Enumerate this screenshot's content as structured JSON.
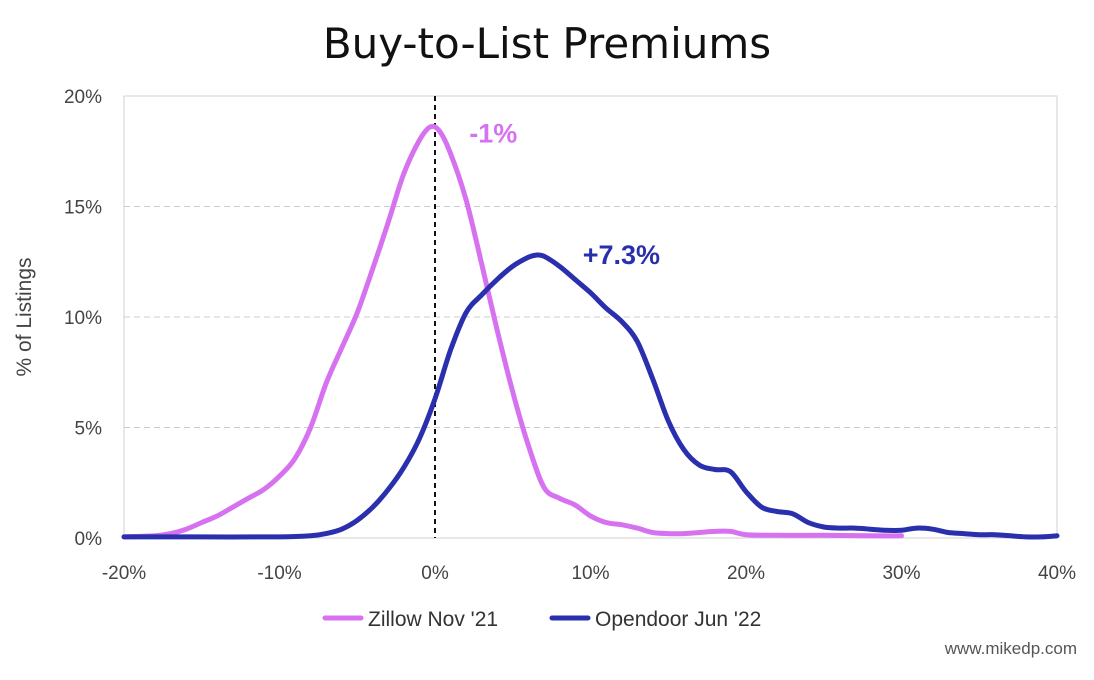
{
  "chart_data": {
    "type": "line",
    "title": "Buy-to-List Premiums",
    "xlabel": "",
    "ylabel": "% of Listings",
    "xlim": [
      -20,
      40
    ],
    "ylim": [
      0,
      20
    ],
    "x_ticks": [
      -20,
      -10,
      0,
      10,
      20,
      30,
      40
    ],
    "x_tick_labels": [
      "-20%",
      "-10%",
      "0%",
      "10%",
      "20%",
      "30%",
      "40%"
    ],
    "y_ticks": [
      0,
      5,
      10,
      15,
      20
    ],
    "y_tick_labels": [
      "0%",
      "5%",
      "10%",
      "15%",
      "20%"
    ],
    "grid": "horizontal-dashed",
    "reference_line_x": 0,
    "legend_position": "bottom",
    "series": [
      {
        "name": "Zillow Nov '21",
        "color": "#d672f0",
        "x": [
          -20,
          -18,
          -17,
          -16,
          -15,
          -14,
          -13,
          -12,
          -11,
          -10,
          -9,
          -8,
          -7,
          -6,
          -5,
          -4,
          -3,
          -2,
          -1,
          -0.3,
          0.3,
          1,
          2,
          3,
          4,
          5,
          6,
          7,
          8,
          9,
          10,
          11,
          12,
          13,
          14,
          15,
          16,
          17,
          18,
          19,
          20,
          22,
          25,
          28,
          30
        ],
        "y": [
          0.05,
          0.1,
          0.2,
          0.4,
          0.7,
          1.0,
          1.4,
          1.8,
          2.2,
          2.8,
          3.6,
          5.0,
          7.0,
          8.6,
          10.2,
          12.2,
          14.3,
          16.5,
          18.0,
          18.6,
          18.4,
          17.4,
          15.3,
          12.4,
          9.4,
          6.6,
          4.2,
          2.3,
          1.8,
          1.5,
          1.0,
          0.7,
          0.6,
          0.45,
          0.25,
          0.2,
          0.2,
          0.25,
          0.3,
          0.3,
          0.15,
          0.12,
          0.12,
          0.1,
          0.1
        ]
      },
      {
        "name": "Opendoor Jun '22",
        "color": "#2a2fad",
        "x": [
          -20,
          -15,
          -10,
          -8,
          -7,
          -6,
          -5,
          -4,
          -3,
          -2,
          -1,
          0,
          1,
          2,
          3,
          4,
          5,
          6,
          6.5,
          7,
          8,
          9,
          10,
          11,
          12,
          13,
          14,
          15,
          16,
          17,
          18,
          19,
          20,
          21,
          22,
          23,
          24,
          25,
          26,
          27,
          28,
          29,
          30,
          31,
          32,
          33,
          34,
          35,
          36,
          37,
          38,
          39,
          40
        ],
        "y": [
          0.05,
          0.05,
          0.05,
          0.1,
          0.2,
          0.4,
          0.8,
          1.4,
          2.2,
          3.2,
          4.5,
          6.3,
          8.5,
          10.2,
          11.0,
          11.7,
          12.3,
          12.7,
          12.8,
          12.75,
          12.3,
          11.7,
          11.1,
          10.4,
          9.8,
          8.9,
          7.2,
          5.3,
          4.0,
          3.3,
          3.1,
          3.0,
          2.1,
          1.4,
          1.2,
          1.1,
          0.7,
          0.5,
          0.45,
          0.45,
          0.4,
          0.35,
          0.35,
          0.45,
          0.4,
          0.25,
          0.2,
          0.15,
          0.15,
          0.1,
          0.05,
          0.05,
          0.1
        ]
      }
    ],
    "annotations": [
      {
        "text": "-1%",
        "x": 2.2,
        "y": 17.9,
        "color": "#d672f0"
      },
      {
        "text": "+7.3%",
        "x": 9.5,
        "y": 12.4,
        "color": "#2a2fad"
      }
    ],
    "credit": "www.mikedp.com"
  }
}
